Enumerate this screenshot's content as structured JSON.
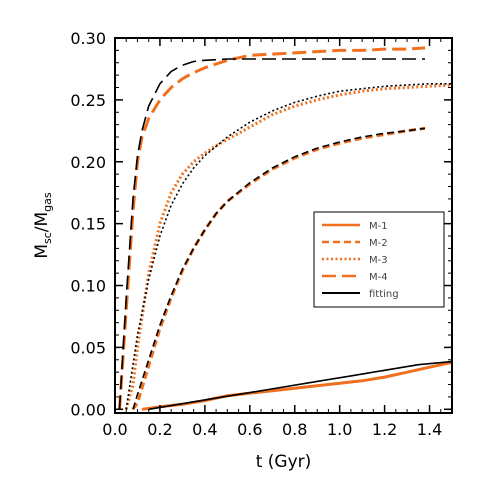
{
  "chart_data": {
    "type": "line",
    "xlabel": "t (Gyr)",
    "ylabel": {
      "main": "M",
      "sub1": "sc",
      "sep": "/M",
      "sub2": "gas"
    },
    "xlim": [
      0.0,
      1.5
    ],
    "ylim": [
      -0.003,
      0.3
    ],
    "xticks": [
      0.0,
      0.2,
      0.4,
      0.6,
      0.8,
      1.0,
      1.2,
      1.4
    ],
    "xtick_labels": [
      "0.0",
      "0.2",
      "0.4",
      "0.6",
      "0.8",
      "1.0",
      "1.2",
      "1.4"
    ],
    "yticks": [
      0.0,
      0.05,
      0.1,
      0.15,
      0.2,
      0.25,
      0.3
    ],
    "ytick_labels": [
      "0.00",
      "0.05",
      "0.10",
      "0.15",
      "0.20",
      "0.25",
      "0.30"
    ],
    "grid": false,
    "legend_position": "center-right",
    "colors": {
      "model": "#f07020",
      "fit": "#000000",
      "legend_text": "#444444"
    },
    "series": [
      {
        "name": "M-1",
        "style": "solid",
        "color": "#f07020",
        "x": [
          0.12,
          0.2,
          0.3,
          0.4,
          0.45,
          0.5,
          0.6,
          0.7,
          0.8,
          0.9,
          1.0,
          1.1,
          1.2,
          1.3,
          1.4,
          1.5
        ],
        "y": [
          0.0,
          0.002,
          0.004,
          0.007,
          0.009,
          0.011,
          0.013,
          0.015,
          0.017,
          0.019,
          0.021,
          0.023,
          0.026,
          0.03,
          0.034,
          0.038
        ]
      },
      {
        "name": "M-2",
        "style": "dashed",
        "color": "#f07020",
        "x": [
          0.08,
          0.1,
          0.15,
          0.2,
          0.25,
          0.3,
          0.35,
          0.4,
          0.45,
          0.5,
          0.6,
          0.7,
          0.8,
          0.9,
          1.0,
          1.1,
          1.2,
          1.3,
          1.38
        ],
        "y": [
          0.0,
          0.005,
          0.035,
          0.065,
          0.09,
          0.112,
          0.13,
          0.145,
          0.158,
          0.168,
          0.182,
          0.194,
          0.203,
          0.21,
          0.215,
          0.219,
          0.222,
          0.225,
          0.227
        ]
      },
      {
        "name": "M-3",
        "style": "dotted",
        "color": "#f07020",
        "x": [
          0.05,
          0.08,
          0.1,
          0.15,
          0.2,
          0.25,
          0.3,
          0.35,
          0.4,
          0.45,
          0.5,
          0.6,
          0.7,
          0.8,
          0.9,
          1.0,
          1.1,
          1.2,
          1.3,
          1.4,
          1.5
        ],
        "y": [
          0.0,
          0.02,
          0.05,
          0.11,
          0.15,
          0.175,
          0.19,
          0.2,
          0.207,
          0.213,
          0.218,
          0.228,
          0.238,
          0.245,
          0.25,
          0.254,
          0.257,
          0.259,
          0.26,
          0.261,
          0.262
        ]
      },
      {
        "name": "M-4",
        "style": "longdash",
        "color": "#f07020",
        "x": [
          0.02,
          0.05,
          0.08,
          0.1,
          0.12,
          0.15,
          0.2,
          0.25,
          0.3,
          0.35,
          0.4,
          0.45,
          0.5,
          0.55,
          0.6,
          0.7,
          0.8,
          0.9,
          1.0,
          1.1,
          1.2,
          1.3,
          1.38
        ],
        "y": [
          0.0,
          0.08,
          0.16,
          0.2,
          0.22,
          0.235,
          0.25,
          0.26,
          0.267,
          0.272,
          0.276,
          0.279,
          0.282,
          0.284,
          0.286,
          0.287,
          0.288,
          0.289,
          0.29,
          0.29,
          0.291,
          0.291,
          0.292
        ]
      },
      {
        "name": "fitting",
        "style": "solid",
        "color": "#000000",
        "x": [
          0.15,
          0.3,
          0.45,
          0.6,
          0.75,
          0.9,
          1.05,
          1.2,
          1.35,
          1.5
        ],
        "y": [
          0.0,
          0.0045,
          0.009,
          0.0135,
          0.018,
          0.0225,
          0.027,
          0.0315,
          0.036,
          0.0385
        ]
      },
      {
        "name": "",
        "style": "dashed",
        "color": "#000000",
        "x": [
          0.08,
          0.1,
          0.15,
          0.2,
          0.25,
          0.3,
          0.35,
          0.4,
          0.45,
          0.5,
          0.6,
          0.7,
          0.8,
          0.9,
          1.0,
          1.1,
          1.2,
          1.3,
          1.38
        ],
        "y": [
          0.0,
          0.012,
          0.04,
          0.068,
          0.092,
          0.113,
          0.13,
          0.145,
          0.158,
          0.168,
          0.183,
          0.195,
          0.204,
          0.211,
          0.216,
          0.22,
          0.223,
          0.225,
          0.227
        ]
      },
      {
        "name": "",
        "style": "dotted",
        "color": "#000000",
        "x": [
          0.05,
          0.1,
          0.15,
          0.2,
          0.25,
          0.3,
          0.35,
          0.4,
          0.5,
          0.6,
          0.7,
          0.8,
          0.9,
          1.0,
          1.1,
          1.2,
          1.3,
          1.4,
          1.5
        ],
        "y": [
          0.0,
          0.06,
          0.105,
          0.14,
          0.165,
          0.182,
          0.195,
          0.205,
          0.22,
          0.232,
          0.241,
          0.248,
          0.253,
          0.257,
          0.259,
          0.261,
          0.262,
          0.263,
          0.263
        ]
      },
      {
        "name": "",
        "style": "longdash",
        "color": "#000000",
        "x": [
          0.02,
          0.05,
          0.08,
          0.1,
          0.12,
          0.15,
          0.2,
          0.25,
          0.3,
          0.35,
          0.4,
          0.5,
          0.6,
          0.7,
          0.8,
          0.9,
          1.0,
          1.2,
          1.38
        ],
        "y": [
          0.0,
          0.09,
          0.17,
          0.205,
          0.225,
          0.245,
          0.263,
          0.273,
          0.278,
          0.281,
          0.282,
          0.283,
          0.283,
          0.283,
          0.283,
          0.283,
          0.283,
          0.283,
          0.283
        ]
      }
    ]
  }
}
